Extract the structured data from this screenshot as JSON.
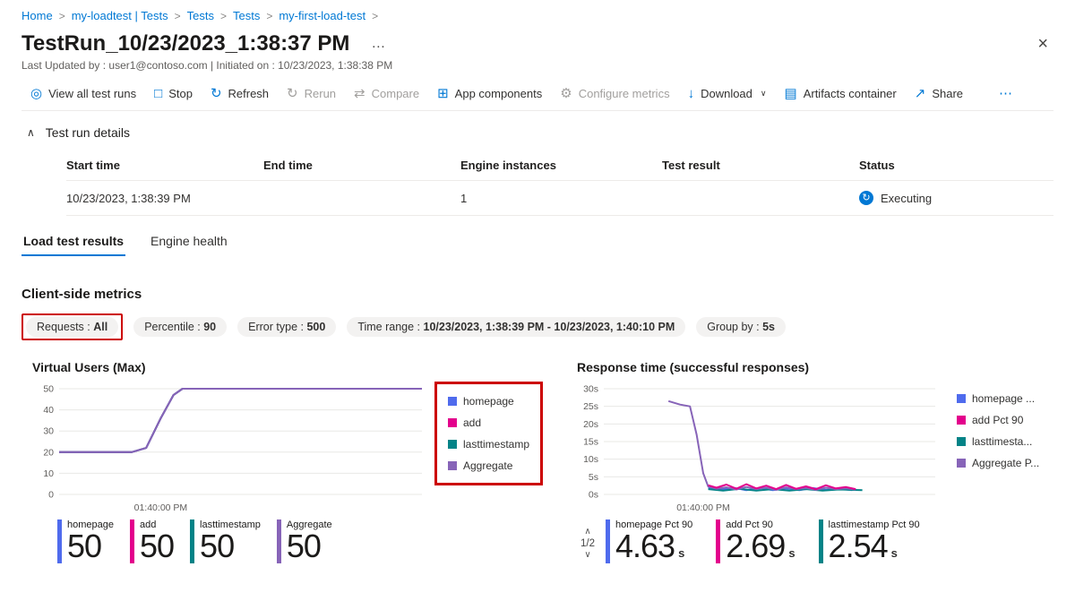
{
  "colors": {
    "accent": "#0078d4",
    "annotation": "#cc0000",
    "homepage": "#4f6bed",
    "add": "#e3008c",
    "lasttimestamp": "#038387",
    "aggregate": "#8764b8"
  },
  "breadcrumb": {
    "items": [
      "Home",
      "my-loadtest | Tests",
      "Tests",
      "Tests",
      "my-first-load-test"
    ],
    "separator": ">"
  },
  "header": {
    "title": "TestRun_10/23/2023_1:38:37 PM",
    "more_label": "…",
    "subtitle": "Last Updated by : user1@contoso.com | Initiated on : 10/23/2023, 1:38:38 PM"
  },
  "toolbar": {
    "items": [
      {
        "label": "View all test runs",
        "icon": "view-all-test-runs-icon",
        "enabled": true
      },
      {
        "label": "Stop",
        "icon": "stop-icon",
        "enabled": true
      },
      {
        "label": "Refresh",
        "icon": "refresh-icon",
        "enabled": true
      },
      {
        "label": "Rerun",
        "icon": "rerun-icon",
        "enabled": false
      },
      {
        "label": "Compare",
        "icon": "compare-icon",
        "enabled": false
      },
      {
        "label": "App components",
        "icon": "app-components-icon",
        "enabled": true
      },
      {
        "label": "Configure metrics",
        "icon": "configure-metrics-icon",
        "enabled": false
      },
      {
        "label": "Download",
        "icon": "download-icon",
        "enabled": true,
        "chevron": true
      },
      {
        "label": "Artifacts container",
        "icon": "artifacts-container-icon",
        "enabled": true
      },
      {
        "label": "Share",
        "icon": "share-icon",
        "enabled": true
      },
      {
        "label": "",
        "icon": "more-icon",
        "enabled": true
      }
    ]
  },
  "details": {
    "section_title": "Test run details",
    "table": {
      "headers": [
        "Start time",
        "End time",
        "Engine instances",
        "Test result",
        "Status"
      ],
      "row": {
        "cells": [
          "10/23/2023, 1:38:39 PM",
          "",
          "1",
          ""
        ],
        "status": {
          "label": "Executing",
          "icon": "sync-icon"
        }
      }
    }
  },
  "tabs": [
    {
      "label": "Load test results",
      "active": true
    },
    {
      "label": "Engine health",
      "active": false
    }
  ],
  "metrics": {
    "heading": "Client-side metrics",
    "separator": " : ",
    "filters": [
      {
        "label": "Requests",
        "value": "All",
        "highlighted": true
      },
      {
        "label": "Percentile",
        "value": "90",
        "highlighted": false
      },
      {
        "label": "Error type",
        "value": "500",
        "highlighted": false
      },
      {
        "label": "Time range",
        "value": "10/23/2023, 1:38:39 PM - 10/23/2023, 1:40:10 PM",
        "highlighted": false
      },
      {
        "label": "Group by",
        "value": "5s",
        "highlighted": false
      }
    ]
  },
  "chart_data": [
    {
      "type": "line",
      "title": "Virtual Users (Max)",
      "ylim": [
        0,
        50
      ],
      "y_ticks": [
        0,
        10,
        20,
        30,
        40,
        50
      ],
      "y_suffix": "",
      "grid": true,
      "x_ticks": [
        {
          "pos": 0.28,
          "label": "01:40:00 PM"
        }
      ],
      "legend": {
        "highlighted": true,
        "items": [
          {
            "label": "homepage",
            "color": "#4f6bed"
          },
          {
            "label": "add",
            "color": "#e3008c"
          },
          {
            "label": "lasttimestamp",
            "color": "#038387"
          },
          {
            "label": "Aggregate",
            "color": "#8764b8"
          }
        ]
      },
      "series": [
        {
          "name": "homepage",
          "color": "#4f6bed",
          "points": [
            [
              0,
              20
            ],
            [
              0.2,
              20
            ],
            [
              0.24,
              22
            ],
            [
              0.28,
              36
            ],
            [
              0.315,
              47
            ],
            [
              0.34,
              50
            ],
            [
              1,
              50
            ]
          ]
        },
        {
          "name": "add",
          "color": "#e3008c",
          "points": [
            [
              0,
              20
            ],
            [
              0.2,
              20
            ],
            [
              0.24,
              22
            ],
            [
              0.28,
              36
            ],
            [
              0.315,
              47
            ],
            [
              0.34,
              50
            ],
            [
              1,
              50
            ]
          ]
        },
        {
          "name": "lasttimestamp",
          "color": "#038387",
          "points": [
            [
              0,
              20
            ],
            [
              0.2,
              20
            ],
            [
              0.24,
              22
            ],
            [
              0.28,
              36
            ],
            [
              0.315,
              47
            ],
            [
              0.34,
              50
            ],
            [
              1,
              50
            ]
          ]
        },
        {
          "name": "Aggregate",
          "color": "#8764b8",
          "points": [
            [
              0,
              20
            ],
            [
              0.2,
              20
            ],
            [
              0.24,
              22
            ],
            [
              0.28,
              36
            ],
            [
              0.315,
              47
            ],
            [
              0.34,
              50
            ],
            [
              1,
              50
            ]
          ]
        }
      ]
    },
    {
      "type": "line",
      "title": "Response time (successful responses)",
      "ylim": [
        0,
        30
      ],
      "y_ticks": [
        0,
        5,
        10,
        15,
        20,
        25,
        30
      ],
      "y_suffix": "s",
      "grid": true,
      "x_ticks": [
        {
          "pos": 0.3,
          "label": "01:40:00 PM"
        }
      ],
      "legend": {
        "highlighted": false,
        "items": [
          {
            "label": "homepage ...",
            "color": "#4f6bed"
          },
          {
            "label": "add Pct 90",
            "color": "#e3008c"
          },
          {
            "label": "lasttimesta...",
            "color": "#038387"
          },
          {
            "label": "Aggregate P...",
            "color": "#8764b8"
          }
        ]
      },
      "series": [
        {
          "name": "homepage Pct 90",
          "color": "#4f6bed",
          "points": [
            [
              0.315,
              1.8
            ],
            [
              0.35,
              1.3
            ],
            [
              0.39,
              1.9
            ],
            [
              0.43,
              1.2
            ],
            [
              0.47,
              1.8
            ],
            [
              0.51,
              1.2
            ],
            [
              0.55,
              1.7
            ],
            [
              0.59,
              1.2
            ],
            [
              0.63,
              1.8
            ],
            [
              0.67,
              1.3
            ],
            [
              0.71,
              1.6
            ],
            [
              0.75,
              1.2
            ]
          ]
        },
        {
          "name": "lasttimestamp Pct 90",
          "color": "#038387",
          "points": [
            [
              0.315,
              1.5
            ],
            [
              0.36,
              1.1
            ],
            [
              0.41,
              1.6
            ],
            [
              0.46,
              1.1
            ],
            [
              0.51,
              1.5
            ],
            [
              0.56,
              1.1
            ],
            [
              0.61,
              1.5
            ],
            [
              0.66,
              1.1
            ],
            [
              0.71,
              1.4
            ],
            [
              0.78,
              1.2
            ]
          ]
        },
        {
          "name": "Aggregate Pct 90",
          "color": "#8764b8",
          "points": [
            [
              0.195,
              26.5
            ],
            [
              0.23,
              25.5
            ],
            [
              0.26,
              25
            ],
            [
              0.28,
              17
            ],
            [
              0.3,
              6
            ],
            [
              0.315,
              2.2
            ],
            [
              0.34,
              1.6
            ],
            [
              0.37,
              2.0
            ],
            [
              0.4,
              1.4
            ],
            [
              0.43,
              2.1
            ],
            [
              0.46,
              1.5
            ],
            [
              0.49,
              1.9
            ],
            [
              0.52,
              1.3
            ],
            [
              0.55,
              2.0
            ],
            [
              0.58,
              1.5
            ],
            [
              0.61,
              1.8
            ],
            [
              0.64,
              1.3
            ],
            [
              0.67,
              1.9
            ],
            [
              0.7,
              1.5
            ],
            [
              0.73,
              1.7
            ],
            [
              0.76,
              1.4
            ]
          ]
        },
        {
          "name": "add Pct 90",
          "color": "#e3008c",
          "points": [
            [
              0.315,
              2.6
            ],
            [
              0.34,
              1.9
            ],
            [
              0.37,
              2.8
            ],
            [
              0.4,
              1.6
            ],
            [
              0.43,
              2.9
            ],
            [
              0.46,
              1.7
            ],
            [
              0.49,
              2.5
            ],
            [
              0.52,
              1.5
            ],
            [
              0.55,
              2.7
            ],
            [
              0.58,
              1.6
            ],
            [
              0.61,
              2.3
            ],
            [
              0.64,
              1.5
            ],
            [
              0.67,
              2.6
            ],
            [
              0.7,
              1.7
            ],
            [
              0.73,
              2.1
            ],
            [
              0.76,
              1.5
            ]
          ]
        }
      ]
    }
  ],
  "summary_left": {
    "cards": [
      {
        "label": "homepage",
        "value": "50",
        "unit": "",
        "color": "#4f6bed"
      },
      {
        "label": "add",
        "value": "50",
        "unit": "",
        "color": "#e3008c"
      },
      {
        "label": "lasttimestamp",
        "value": "50",
        "unit": "",
        "color": "#038387"
      },
      {
        "label": "Aggregate",
        "value": "50",
        "unit": "",
        "color": "#8764b8"
      }
    ]
  },
  "summary_right": {
    "pagination": {
      "label": "1/2"
    },
    "cards": [
      {
        "label": "homepage Pct 90",
        "value": "4.63",
        "unit": "s",
        "color": "#4f6bed"
      },
      {
        "label": "add Pct 90",
        "value": "2.69",
        "unit": "s",
        "color": "#e3008c"
      },
      {
        "label": "lasttimestamp Pct 90",
        "value": "2.54",
        "unit": "s",
        "color": "#038387"
      }
    ]
  }
}
